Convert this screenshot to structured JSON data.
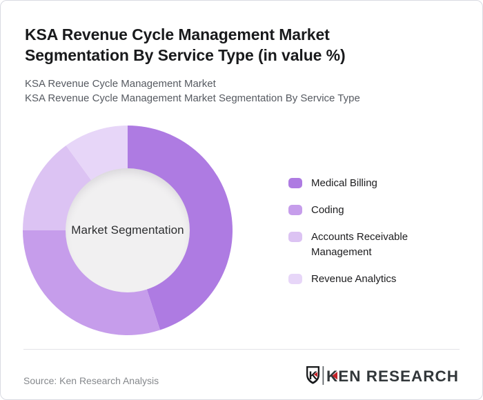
{
  "card": {
    "title": "KSA Revenue Cycle Management Market Segmentation By Service Type (in value %)",
    "subtitle_line1": "KSA Revenue Cycle Management Market",
    "subtitle_line2": "KSA Revenue Cycle Management Market Segmentation By Service Type"
  },
  "chart_data": {
    "type": "pie",
    "variant": "donut",
    "title": "KSA Revenue Cycle Management Market Segmentation By Service Type (in value %)",
    "center_label": "Market Segmentation",
    "categories": [
      "Medical Billing",
      "Coding",
      "Accounts Receivable Management",
      "Revenue Analytics"
    ],
    "values": [
      45,
      30,
      15,
      10
    ],
    "unit": "%",
    "colors": [
      "#ae7be2",
      "#c69deb",
      "#dcc3f3",
      "#e7d6f8"
    ],
    "start_angle_deg": 0,
    "direction": "clockwise",
    "legend_position": "right",
    "inner_circle_color": "#f1f0f1"
  },
  "footer": {
    "source": "Source: Ken Research Analysis",
    "logo": {
      "brand": "KEN RESEARCH",
      "icon_letter": "K",
      "accent_color": "#c42127",
      "text_color": "#32373a"
    }
  }
}
